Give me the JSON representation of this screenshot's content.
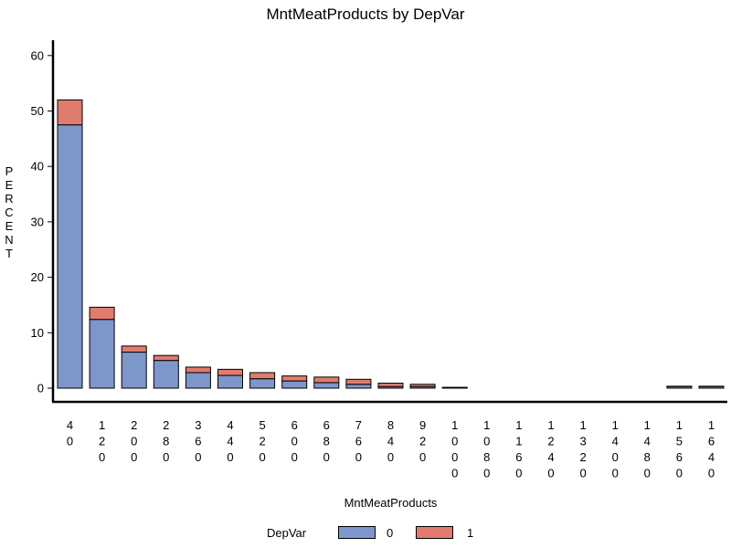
{
  "colors": {
    "dep0": "#7d97cb",
    "dep1": "#e07c6d"
  },
  "chart_data": {
    "type": "bar",
    "stacked": true,
    "title": "MntMeatProducts  by  DepVar",
    "xlabel": "MntMeatProducts",
    "ylabel": "PERCENT",
    "ylim": [
      0,
      60
    ],
    "yticks": [
      0,
      10,
      20,
      30,
      40,
      50,
      60
    ],
    "categories": [
      "40",
      "120",
      "200",
      "280",
      "360",
      "440",
      "520",
      "600",
      "680",
      "760",
      "840",
      "920",
      "1000",
      "1080",
      "1160",
      "1240",
      "1320",
      "1400",
      "1480",
      "1560",
      "1640"
    ],
    "series": [
      {
        "name": "0",
        "values": [
          47.5,
          12.4,
          6.5,
          5.0,
          2.8,
          2.3,
          1.7,
          1.3,
          1.0,
          0.7,
          0.3,
          0.3,
          0.1,
          0,
          0,
          0,
          0,
          0,
          0,
          0.3,
          0.3
        ]
      },
      {
        "name": "1",
        "values": [
          4.5,
          2.2,
          1.1,
          0.9,
          1.0,
          1.1,
          1.1,
          0.9,
          1.0,
          0.9,
          0.6,
          0.4,
          0.05,
          0,
          0,
          0,
          0,
          0,
          0,
          0.05,
          0.05
        ]
      }
    ],
    "legend": {
      "title": "DepVar",
      "position": "bottom"
    }
  }
}
